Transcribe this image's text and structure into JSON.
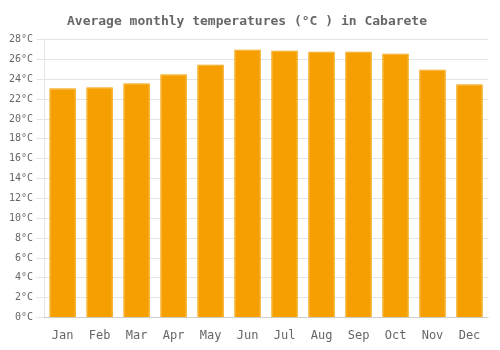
{
  "chart_data": {
    "type": "bar",
    "title": "Average monthly temperatures (°C ) in Cabarete",
    "categories": [
      "Jan",
      "Feb",
      "Mar",
      "Apr",
      "May",
      "Jun",
      "Jul",
      "Aug",
      "Sep",
      "Oct",
      "Nov",
      "Dec"
    ],
    "values": [
      23.1,
      23.2,
      23.6,
      24.5,
      25.5,
      27.0,
      26.9,
      26.8,
      26.8,
      26.6,
      25.0,
      23.5
    ],
    "color": "#F5A000",
    "ylim": [
      0,
      28
    ],
    "yticks": [
      {
        "value": 0,
        "label": "0°C"
      },
      {
        "value": 2,
        "label": "2°C"
      },
      {
        "value": 4,
        "label": "4°C"
      },
      {
        "value": 6,
        "label": "6°C"
      },
      {
        "value": 8,
        "label": "8°C"
      },
      {
        "value": 10,
        "label": "10°C"
      },
      {
        "value": 12,
        "label": "12°C"
      },
      {
        "value": 14,
        "label": "14°C"
      },
      {
        "value": 16,
        "label": "16°C"
      },
      {
        "value": 18,
        "label": "18°C"
      },
      {
        "value": 20,
        "label": "20°C"
      },
      {
        "value": 22,
        "label": "22°C"
      },
      {
        "value": 24,
        "label": "24°C"
      },
      {
        "value": 26,
        "label": "26°C"
      },
      {
        "value": 28,
        "label": "28°C"
      }
    ],
    "grid": true
  }
}
